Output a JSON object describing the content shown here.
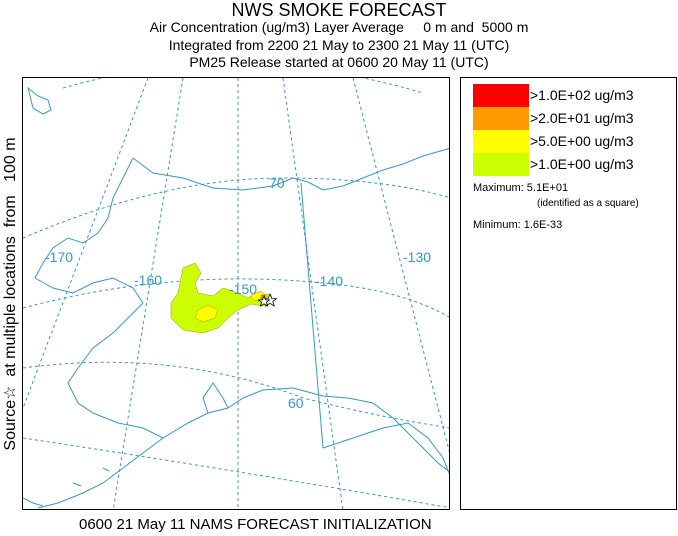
{
  "title": {
    "line1": "NWS SMOKE FORECAST",
    "line2": "Air Concentration (ug/m3) Layer Average     0 m and  5000 m",
    "line3": "Integrated from 2200 21 May to 2300 21 May 11 (UTC)",
    "line4": "PM25 Release started at 0600 20 May 11 (UTC)"
  },
  "side_label": "Source☆  at multiple locations  from   100 m",
  "footer": "0600 21 May 11 NAMS FORECAST INITIALIZATION",
  "map": {
    "longitude_labels": [
      "-170",
      "-160",
      "-150",
      "-140",
      "-130"
    ],
    "latitude_labels": [
      "70",
      "60"
    ],
    "source_symbol": "☆",
    "colors": {
      "coastline": "#3399cc",
      "graticule": "#3399cc",
      "border": "#3399cc",
      "plume_outer": "#ccff00",
      "plume_inner": "#ffff00"
    }
  },
  "legend": {
    "items": [
      {
        "label": ">1.0E+02 ug/m3",
        "color": "#ff0000"
      },
      {
        "label": ">2.0E+01 ug/m3",
        "color": "#ff9900"
      },
      {
        "label": ">5.0E+00 ug/m3",
        "color": "#ffff00"
      },
      {
        "label": ">1.0E+00 ug/m3",
        "color": "#ccff00"
      }
    ],
    "maximum": "Maximum: 5.1E+01",
    "maximum_note": "(identified as a square)",
    "minimum": "Minimum: 1.6E-33"
  }
}
